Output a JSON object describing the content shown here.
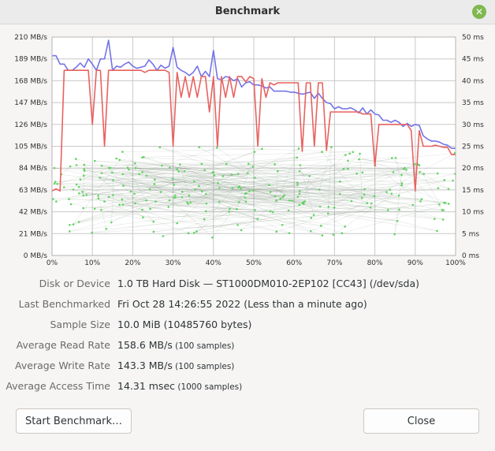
{
  "window": {
    "title": "Benchmark"
  },
  "chart_data": {
    "type": "line",
    "y_left_ticks": [
      "210 MB/s",
      "189 MB/s",
      "168 MB/s",
      "147 MB/s",
      "126 MB/s",
      "105 MB/s",
      "84 MB/s",
      "63 MB/s",
      "42 MB/s",
      "21 MB/s",
      "0 MB/s"
    ],
    "y_right_ticks": [
      "50 ms",
      "45 ms",
      "40 ms",
      "35 ms",
      "30 ms",
      "25 ms",
      "20 ms",
      "15 ms",
      "10 ms",
      "5 ms",
      "0 ms"
    ],
    "x_ticks": [
      "0%",
      "10%",
      "20%",
      "30%",
      "40%",
      "50%",
      "60%",
      "70%",
      "80%",
      "90%",
      "100%"
    ],
    "ylim_left": [
      0,
      210
    ],
    "ylim_right": [
      0,
      50
    ],
    "xlim": [
      0,
      100
    ],
    "grid": true,
    "colors": {
      "read": "#7373e8",
      "write": "#e8625f",
      "access": "#5fd45f"
    },
    "series": [
      {
        "key": "read",
        "x": [
          0,
          1,
          2,
          3,
          4,
          5,
          6,
          7,
          8,
          9,
          10,
          11,
          12,
          13,
          14,
          15,
          16,
          17,
          18,
          19,
          20,
          21,
          22,
          23,
          24,
          25,
          26,
          27,
          28,
          29,
          30,
          31,
          32,
          33,
          34,
          35,
          36,
          37,
          38,
          39,
          40,
          41,
          42,
          43,
          44,
          45,
          46,
          47,
          48,
          49,
          50,
          51,
          52,
          53,
          54,
          55,
          56,
          57,
          58,
          59,
          60,
          61,
          62,
          63,
          64,
          65,
          66,
          67,
          68,
          69,
          70,
          71,
          72,
          73,
          74,
          75,
          76,
          77,
          78,
          79,
          80,
          81,
          82,
          83,
          84,
          85,
          86,
          87,
          88,
          89,
          90,
          91,
          92,
          93,
          94,
          95,
          96,
          97,
          98,
          99,
          100
        ],
        "values": [
          192,
          192,
          184,
          184,
          178,
          178,
          181,
          185,
          181,
          189,
          184,
          178,
          189,
          189,
          207,
          178,
          182,
          181,
          184,
          186,
          182,
          180,
          181,
          182,
          188,
          184,
          178,
          183,
          180,
          182,
          200,
          181,
          178,
          176,
          173,
          176,
          182,
          172,
          177,
          172,
          197,
          170,
          169,
          172,
          171,
          168,
          170,
          162,
          166,
          167,
          164,
          164,
          163,
          161,
          162,
          158,
          158,
          158,
          158,
          157,
          157,
          156,
          155,
          156,
          157,
          151,
          156,
          151,
          147,
          146,
          141,
          143,
          141,
          141,
          142,
          140,
          137,
          142,
          136,
          140,
          136,
          135,
          130,
          130,
          128,
          130,
          128,
          124,
          127,
          124,
          126,
          125,
          115,
          112,
          110,
          110,
          109,
          107,
          106,
          103,
          103
        ]
      },
      {
        "key": "write",
        "x": [
          0,
          1,
          2,
          3,
          4,
          5,
          6,
          7,
          8,
          9,
          10,
          11,
          12,
          13,
          14,
          15,
          16,
          17,
          18,
          19,
          20,
          21,
          22,
          23,
          24,
          25,
          26,
          27,
          28,
          29,
          30,
          31,
          32,
          33,
          34,
          35,
          36,
          37,
          38,
          39,
          40,
          41,
          42,
          43,
          44,
          45,
          46,
          47,
          48,
          49,
          50,
          51,
          52,
          53,
          54,
          55,
          56,
          57,
          58,
          59,
          60,
          61,
          62,
          63,
          64,
          65,
          66,
          67,
          68,
          69,
          70,
          71,
          72,
          73,
          74,
          75,
          76,
          77,
          78,
          79,
          80,
          81,
          82,
          83,
          84,
          85,
          86,
          87,
          88,
          89,
          90,
          91,
          92,
          93,
          94,
          95,
          96,
          97,
          98,
          99,
          100
        ],
        "values": [
          62,
          64,
          62,
          178,
          178,
          178,
          178,
          178,
          178,
          178,
          126,
          178,
          178,
          105,
          178,
          178,
          178,
          178,
          178,
          178,
          178,
          178,
          178,
          176,
          178,
          178,
          178,
          178,
          178,
          176,
          105,
          176,
          152,
          172,
          152,
          172,
          152,
          172,
          172,
          138,
          172,
          105,
          172,
          152,
          172,
          152,
          172,
          172,
          167,
          172,
          170,
          105,
          170,
          152,
          166,
          164,
          166,
          166,
          166,
          166,
          166,
          166,
          100,
          166,
          166,
          105,
          166,
          166,
          101,
          138,
          138,
          138,
          138,
          138,
          138,
          138,
          138,
          136,
          136,
          136,
          86,
          126,
          126,
          126,
          126,
          126,
          126,
          126,
          126,
          120,
          62,
          120,
          105,
          105,
          105,
          106,
          105,
          104,
          104,
          97,
          97
        ]
      },
      {
        "key": "access",
        "x": [],
        "values": []
      }
    ]
  },
  "info": [
    {
      "label": "Disk or Device",
      "value": "1.0 TB Hard Disk — ST1000DM010-2EP102 [CC43] (/dev/sda)",
      "extra": ""
    },
    {
      "label": "Last Benchmarked",
      "value": "Fri Oct 28 14:26:55 2022 (Less than a minute ago)",
      "extra": ""
    },
    {
      "label": "Sample Size",
      "value": "10.0 MiB (10485760 bytes)",
      "extra": ""
    },
    {
      "label": "Average Read Rate",
      "value": "158.6 MB/s",
      "extra": "(100 samples)"
    },
    {
      "label": "Average Write Rate",
      "value": "143.3 MB/s",
      "extra": "(100 samples)"
    },
    {
      "label": "Average Access Time",
      "value": "14.31 msec",
      "extra": "(1000 samples)"
    }
  ],
  "buttons": {
    "start": "Start Benchmark…",
    "close": "Close"
  },
  "icons": {
    "close": "close-icon"
  }
}
